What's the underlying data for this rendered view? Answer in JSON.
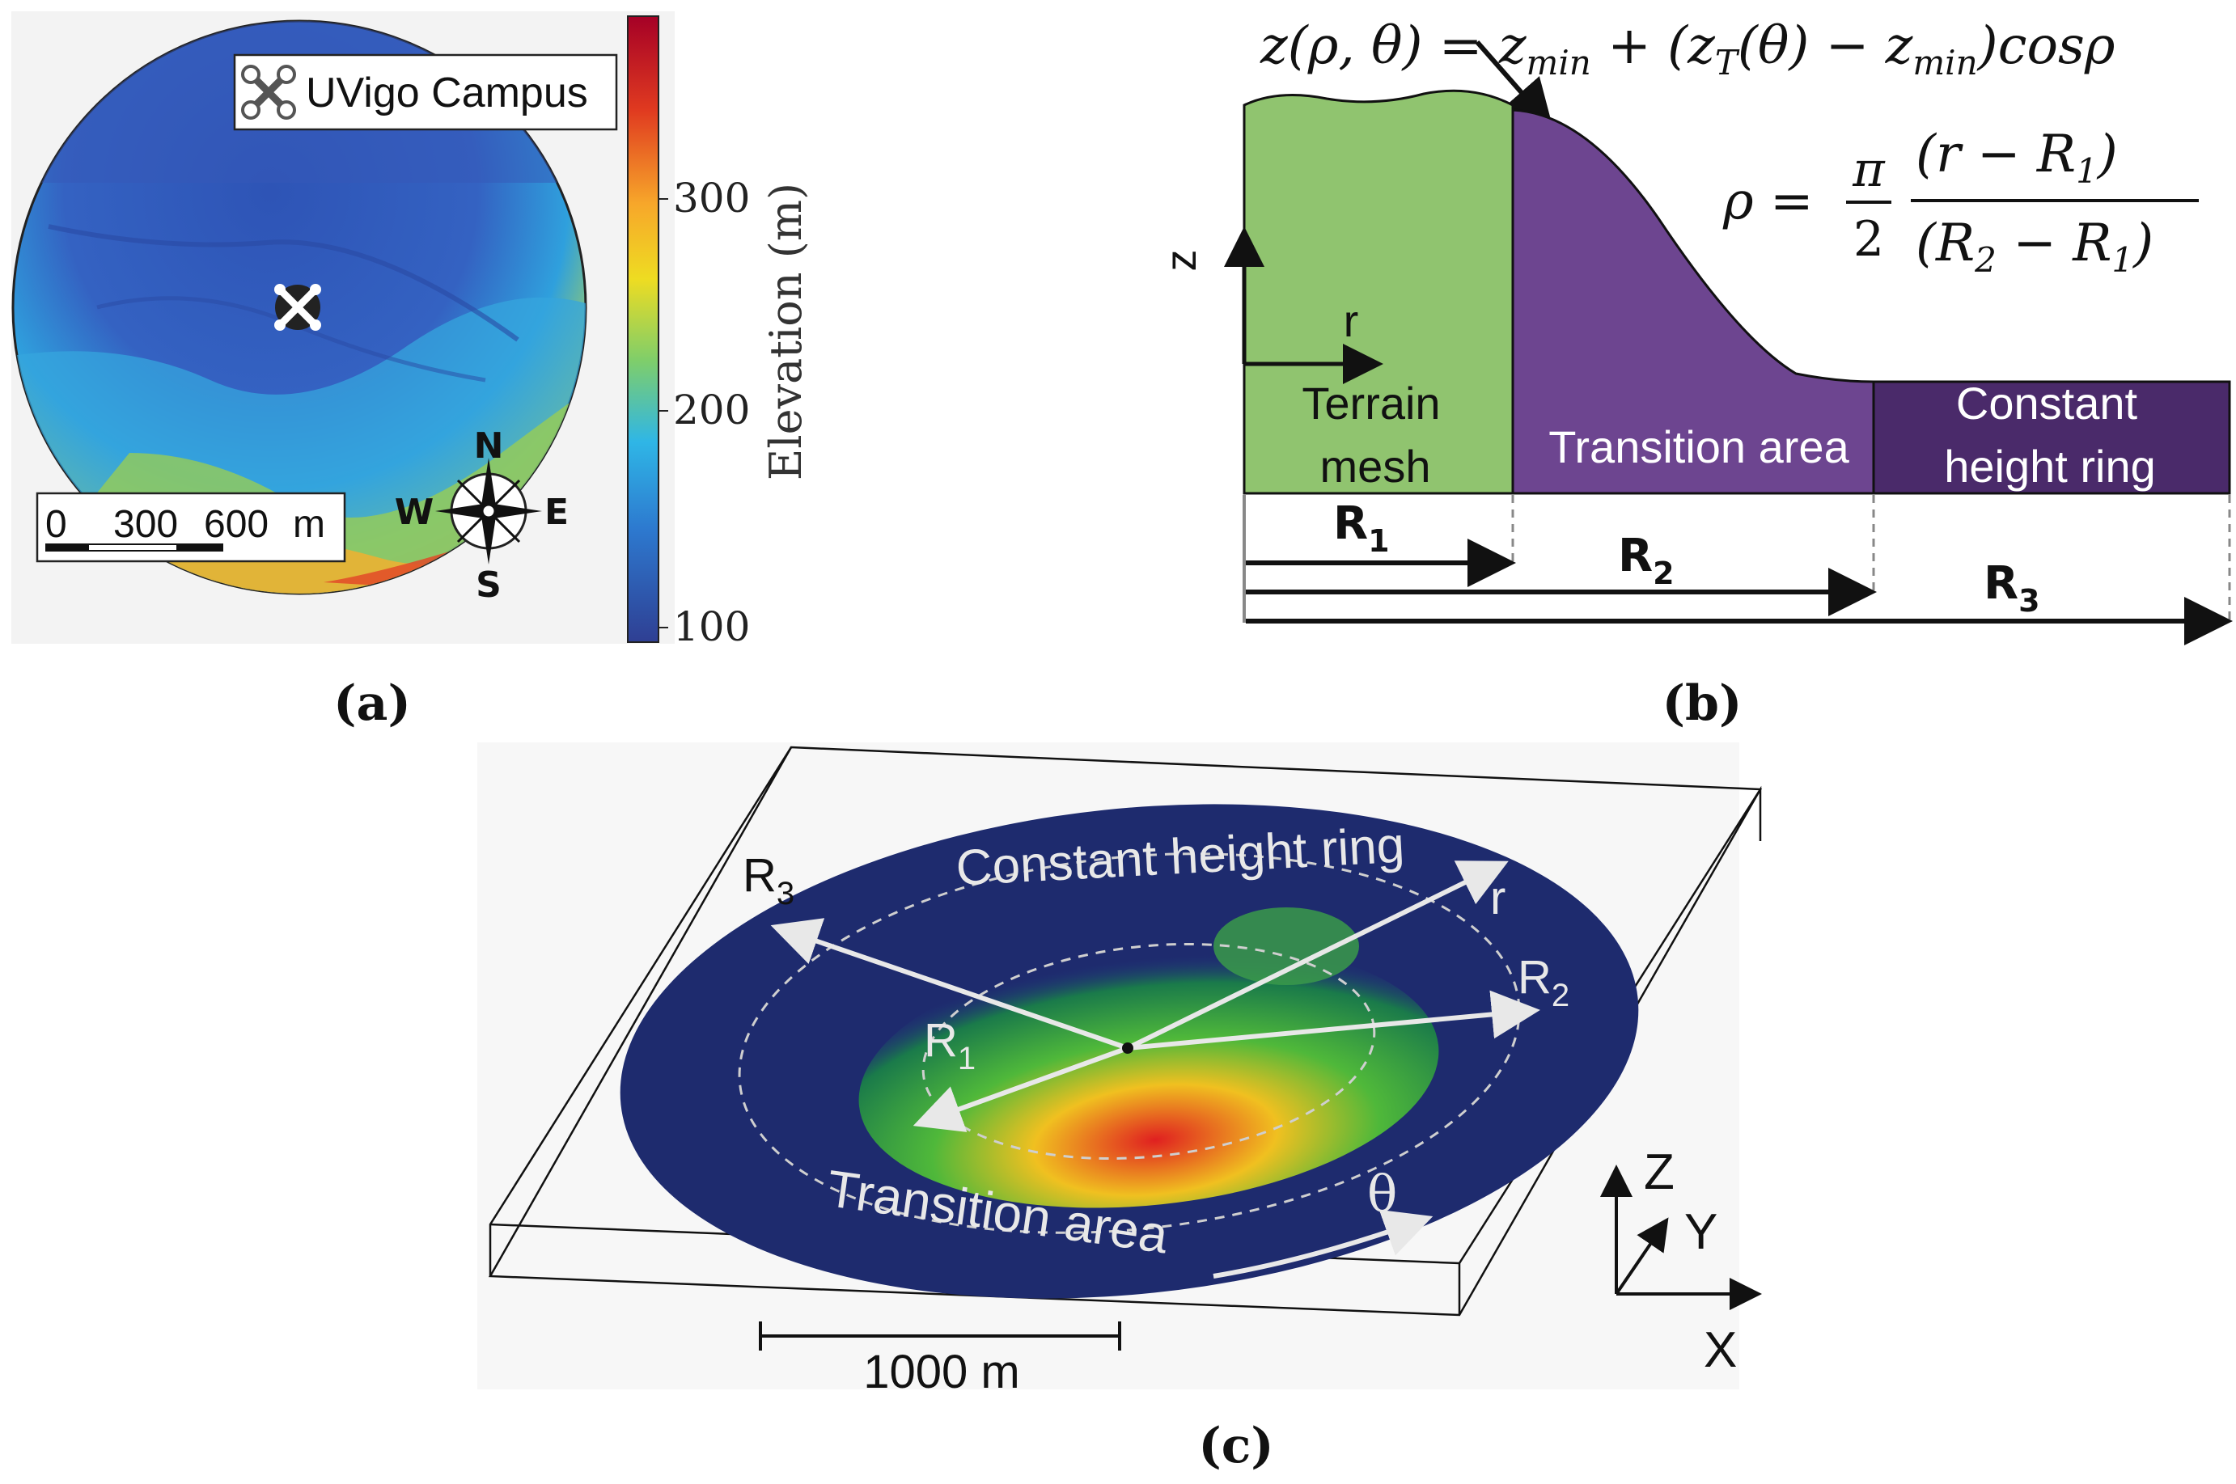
{
  "panel_a": {
    "label": "(a)",
    "place_label": "UVigo Campus",
    "colorbar": {
      "title": "Elevation (m)",
      "ticks": [
        "300",
        "200",
        "100"
      ],
      "colors": [
        "#a50026",
        "#e03a20",
        "#f7a72a",
        "#eedc22",
        "#7fce6a",
        "#2fb6e6",
        "#2d79cf",
        "#2f3f93"
      ]
    },
    "scale_bar": {
      "labels": [
        "0",
        "300",
        "600",
        "m"
      ]
    },
    "compass": {
      "n": "N",
      "s": "S",
      "e": "E",
      "w": "W"
    }
  },
  "panel_b": {
    "label": "(b)",
    "formula_main": "z(ρ, θ) = z",
    "formula_sub1": "min",
    "formula_mid": " + (z",
    "formula_sub2": "T",
    "formula_mid2": "(θ) − z",
    "formula_sub3": "min",
    "formula_end": ")cosρ",
    "rho_lhs": "ρ =",
    "rho_pi": "π",
    "rho_two": "2",
    "rho_num": "(r − R",
    "rho_num_sub": "1",
    "rho_num_end": ")",
    "rho_den": "(R",
    "rho_den_sub": "2",
    "rho_den_mid": " − R",
    "rho_den_sub2": "1",
    "rho_den_end": ")",
    "axis_z": "z",
    "axis_r": "r",
    "region_terrain_line1": "Terrain",
    "region_terrain_line2": "mesh",
    "region_transition": "Transition area",
    "region_constant_line1": "Constant",
    "region_constant_line2": "height ring",
    "radii": [
      {
        "letter": "R",
        "sub": "1"
      },
      {
        "letter": "R",
        "sub": "2"
      },
      {
        "letter": "R",
        "sub": "3"
      }
    ],
    "colors": {
      "terrain": "#90c46f",
      "transition": "#6d4590",
      "constant": "#4a2a6a"
    }
  },
  "panel_c": {
    "label": "(c)",
    "constant_ring": "Constant height ring",
    "transition": "Transition area",
    "r1": {
      "letter": "R",
      "sub": "1"
    },
    "r2": {
      "letter": "R",
      "sub": "2"
    },
    "r3": {
      "letter": "R",
      "sub": "3"
    },
    "r": "r",
    "theta": "θ",
    "scale": "1000 m",
    "axes": {
      "z": "Z",
      "y": "Y",
      "x": "X"
    }
  }
}
